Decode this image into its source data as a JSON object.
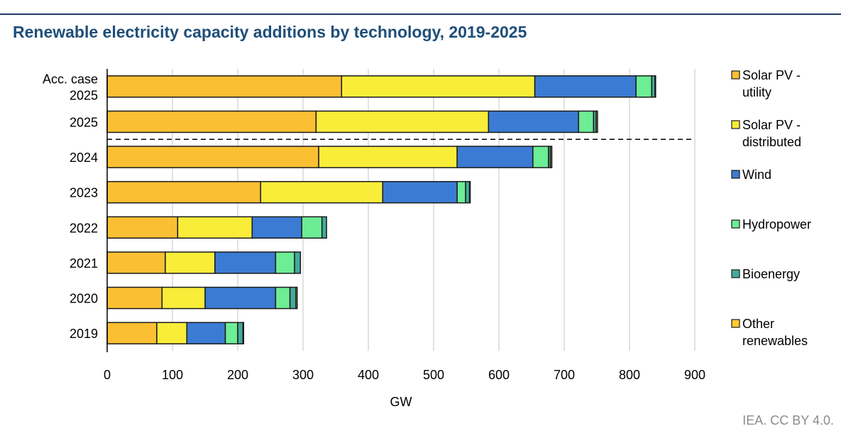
{
  "chart_data": {
    "type": "bar",
    "orientation": "horizontal",
    "stacked": true,
    "title": "Renewable electricity capacity additions by technology, 2019-2025",
    "xlabel": "GW",
    "ylabel": "",
    "xlim": [
      0,
      900
    ],
    "xticks": [
      0,
      100,
      200,
      300,
      400,
      500,
      600,
      700,
      800,
      900
    ],
    "grid": true,
    "legend_position": "right",
    "categories": [
      [
        "Acc. case",
        "2025"
      ],
      [
        "2025"
      ],
      [
        "2024"
      ],
      [
        "2023"
      ],
      [
        "2022"
      ],
      [
        "2021"
      ],
      [
        "2020"
      ],
      [
        "2019"
      ]
    ],
    "series": [
      {
        "name": [
          "Solar PV -",
          "utility"
        ],
        "color": "#fbbf33",
        "values": [
          359,
          320,
          324,
          235,
          108,
          89,
          84,
          76
        ]
      },
      {
        "name": [
          "Solar PV -",
          "distributed"
        ],
        "color": "#f9ed3a",
        "values": [
          296,
          264,
          212,
          187,
          114,
          76,
          66,
          46
        ]
      },
      {
        "name": [
          "Wind"
        ],
        "color": "#3b7bd3",
        "values": [
          155,
          138,
          116,
          114,
          76,
          93,
          108,
          59
        ]
      },
      {
        "name": [
          "Hydropower"
        ],
        "color": "#6ded95",
        "values": [
          24,
          23,
          24,
          13,
          31,
          29,
          22,
          19
        ]
      },
      {
        "name": [
          "Bioenergy"
        ],
        "color": "#43ab9c",
        "values": [
          5,
          4,
          3,
          6,
          7,
          9,
          9,
          8
        ]
      },
      {
        "name": [
          "Other",
          "renewables"
        ],
        "color": "#ffcc33",
        "values": [
          1,
          2,
          2,
          1,
          0,
          0,
          2,
          1
        ]
      }
    ],
    "separator_after_category_index": 1
  },
  "credit": "IEA. CC BY 4.0.",
  "colors": {
    "title": "#1f4e79",
    "rule": "#1f3864"
  }
}
